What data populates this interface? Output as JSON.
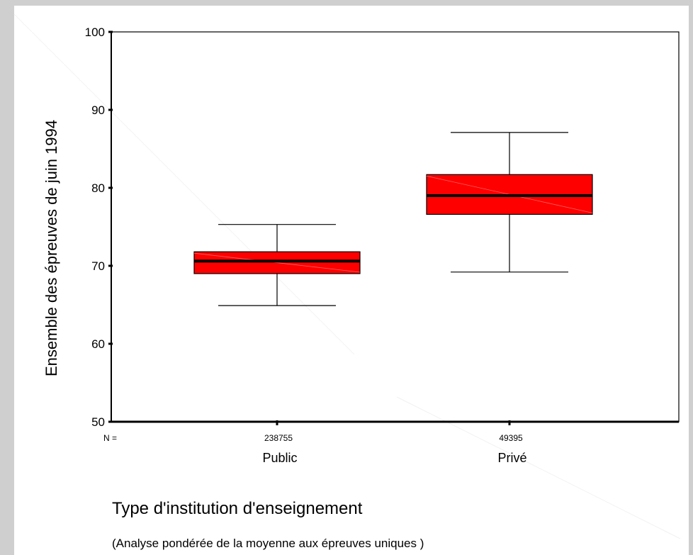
{
  "chart_data": {
    "type": "boxplot",
    "ylabel": "Ensemble des épreuves  de juin 1994",
    "xlabel": "Type d'institution d'enseignement",
    "note": "(Analyse pondérée de la moyenne aux épreuves uniques )",
    "n_prefix": "N =",
    "ylim": [
      50,
      100
    ],
    "yticks": [
      50,
      60,
      70,
      80,
      90,
      100
    ],
    "categories": [
      {
        "name": "Public",
        "n": "238755",
        "min": 64.9,
        "q1": 69.0,
        "median": 70.6,
        "q3": 71.8,
        "max": 75.3
      },
      {
        "name": "Privé",
        "n": "49395",
        "min": 69.2,
        "q1": 76.6,
        "median": 79.0,
        "q3": 81.7,
        "max": 87.1
      }
    ],
    "box_color": "#ff0000",
    "grid": false
  }
}
